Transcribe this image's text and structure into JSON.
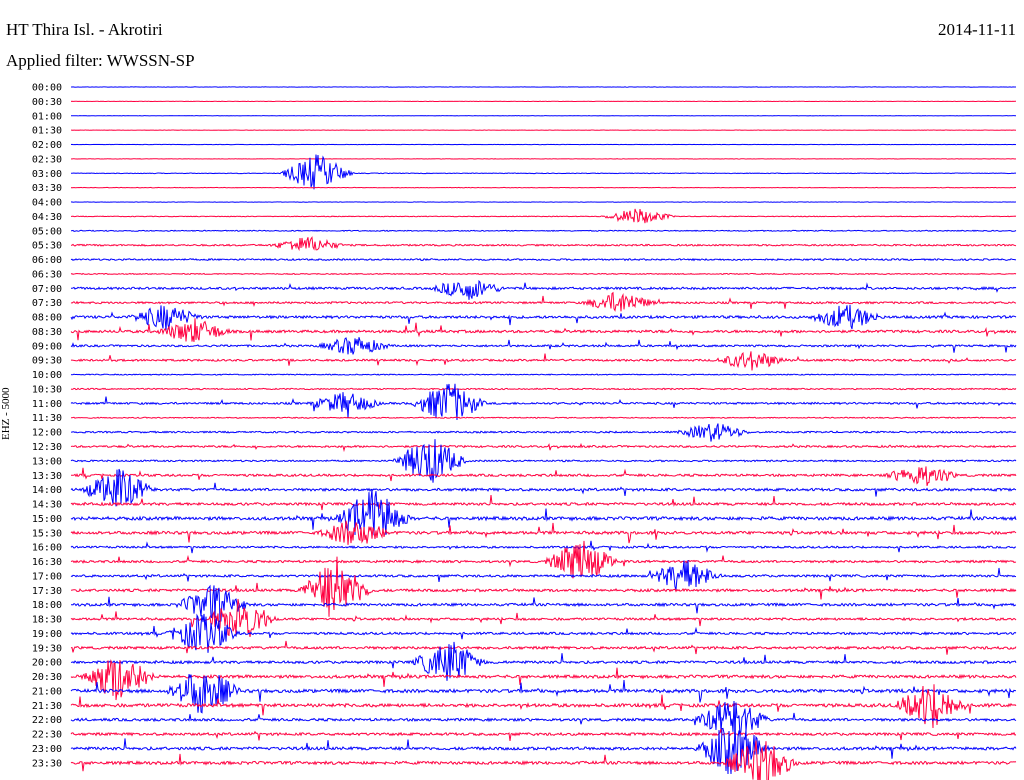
{
  "header": {
    "station": "HT Thira Isl. - Akrotiri",
    "date": "2014-11-11",
    "filter": "Applied filter: WWSSN-SP",
    "channel": "EHZ - 5000"
  },
  "colors": {
    "even_row": "#0000ff",
    "odd_row": "#ff0040"
  },
  "chart_data": {
    "type": "line",
    "title": "HT Thira Isl. - Akrotiri",
    "ylabel": "EHZ - 5000",
    "xlabel": "",
    "y_tick_labels": [
      "00:00",
      "00:30",
      "01:00",
      "01:30",
      "02:00",
      "02:30",
      "03:00",
      "03:30",
      "04:00",
      "04:30",
      "05:00",
      "05:30",
      "06:00",
      "06:30",
      "07:00",
      "07:30",
      "08:00",
      "08:30",
      "09:00",
      "09:30",
      "10:00",
      "10:30",
      "11:00",
      "11:30",
      "12:00",
      "12:30",
      "13:00",
      "13:30",
      "14:00",
      "14:30",
      "15:00",
      "15:30",
      "16:00",
      "16:30",
      "17:00",
      "17:30",
      "18:00",
      "18:30",
      "19:00",
      "19:30",
      "20:00",
      "20:30",
      "21:00",
      "21:30",
      "22:00",
      "22:30",
      "23:00",
      "23:30"
    ],
    "x_range_minutes": [
      0,
      30
    ],
    "rows_activity": [
      0.1,
      0.1,
      0.1,
      0.1,
      0.1,
      0.1,
      0.2,
      0.15,
      0.1,
      0.2,
      0.3,
      0.5,
      0.5,
      0.3,
      0.7,
      0.6,
      0.8,
      0.8,
      0.6,
      0.6,
      0.3,
      0.4,
      0.6,
      0.3,
      0.5,
      0.6,
      0.5,
      0.7,
      0.8,
      0.8,
      1.0,
      0.9,
      0.6,
      0.7,
      0.7,
      0.8,
      0.8,
      0.7,
      0.7,
      0.8,
      0.8,
      0.9,
      1.0,
      1.0,
      0.8,
      0.8,
      0.9,
      0.9
    ],
    "events": [
      {
        "row": 6,
        "pos": 0.26,
        "amp": 1.4
      },
      {
        "row": 9,
        "pos": 0.6,
        "amp": 0.6
      },
      {
        "row": 11,
        "pos": 0.25,
        "amp": 0.6
      },
      {
        "row": 14,
        "pos": 0.42,
        "amp": 0.8
      },
      {
        "row": 15,
        "pos": 0.58,
        "amp": 0.8
      },
      {
        "row": 16,
        "pos": 0.1,
        "amp": 0.9
      },
      {
        "row": 16,
        "pos": 0.82,
        "amp": 0.9
      },
      {
        "row": 17,
        "pos": 0.13,
        "amp": 0.9
      },
      {
        "row": 18,
        "pos": 0.3,
        "amp": 0.7
      },
      {
        "row": 19,
        "pos": 0.72,
        "amp": 0.7
      },
      {
        "row": 22,
        "pos": 0.4,
        "amp": 1.6
      },
      {
        "row": 22,
        "pos": 0.29,
        "amp": 0.8
      },
      {
        "row": 24,
        "pos": 0.68,
        "amp": 0.7
      },
      {
        "row": 26,
        "pos": 0.38,
        "amp": 1.8
      },
      {
        "row": 27,
        "pos": 0.9,
        "amp": 0.8
      },
      {
        "row": 28,
        "pos": 0.05,
        "amp": 1.5
      },
      {
        "row": 30,
        "pos": 0.32,
        "amp": 2.2
      },
      {
        "row": 31,
        "pos": 0.3,
        "amp": 1.0
      },
      {
        "row": 33,
        "pos": 0.54,
        "amp": 1.6
      },
      {
        "row": 34,
        "pos": 0.65,
        "amp": 1.2
      },
      {
        "row": 35,
        "pos": 0.28,
        "amp": 2.2
      },
      {
        "row": 36,
        "pos": 0.15,
        "amp": 1.4
      },
      {
        "row": 37,
        "pos": 0.18,
        "amp": 1.6
      },
      {
        "row": 38,
        "pos": 0.14,
        "amp": 1.5
      },
      {
        "row": 40,
        "pos": 0.4,
        "amp": 1.6
      },
      {
        "row": 41,
        "pos": 0.05,
        "amp": 1.8
      },
      {
        "row": 42,
        "pos": 0.14,
        "amp": 1.8
      },
      {
        "row": 43,
        "pos": 0.91,
        "amp": 1.7
      },
      {
        "row": 44,
        "pos": 0.7,
        "amp": 1.6
      },
      {
        "row": 46,
        "pos": 0.7,
        "amp": 2.0
      },
      {
        "row": 47,
        "pos": 0.73,
        "amp": 1.8
      }
    ]
  }
}
